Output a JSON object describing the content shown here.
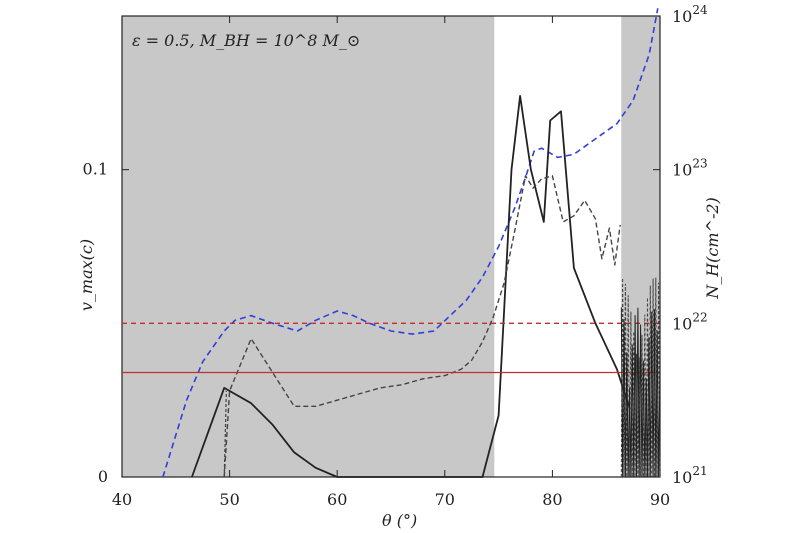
{
  "chart_data": {
    "type": "line",
    "annotation": "ε = 0.5, M_BH = 10^8 M_⊙",
    "xlabel": "θ (°)",
    "ylabel_left": "v_max(c)",
    "ylabel_right": "N_H(cm^-2)",
    "xlim": [
      40,
      90
    ],
    "ylim_left": [
      0,
      0.15
    ],
    "ylim_right_log10": [
      21,
      24
    ],
    "x_ticks": [
      "40",
      "50",
      "60",
      "70",
      "80",
      "90"
    ],
    "y_ticks_left": [
      {
        "value": 0,
        "label": "0"
      },
      {
        "value": 0.1,
        "label": "0.1"
      }
    ],
    "y_ticks_right": [
      {
        "exp": 21,
        "label": "10",
        "sup": "21"
      },
      {
        "exp": 22,
        "label": "10",
        "sup": "22"
      },
      {
        "exp": 23,
        "label": "10",
        "sup": "23"
      },
      {
        "exp": 24,
        "label": "10",
        "sup": "24"
      }
    ],
    "shaded_regions": [
      {
        "x0": 40,
        "x1": 74.6
      },
      {
        "x0": 86.4,
        "x1": 90
      }
    ],
    "colors": {
      "shade": "#c8c8c8",
      "blue": "#2f3fd8",
      "red": "#c03030",
      "black": "#222222",
      "grey": "#444444"
    },
    "series": [
      {
        "style": "blue-dashed",
        "axis": "right",
        "x": [
          43.8,
          46,
          47.5,
          49.5,
          50.5,
          52,
          54,
          56.3,
          58,
          60,
          61.5,
          63,
          65,
          67,
          69,
          70.5,
          72,
          73.5,
          75,
          76.5,
          77.5,
          78.3,
          79,
          80.5,
          82,
          84,
          86,
          87.5,
          89,
          89.8
        ],
        "y": [
          21,
          21.5,
          21.75,
          21.95,
          22.02,
          22.05,
          22.0,
          21.95,
          22.02,
          22.08,
          22.05,
          22.0,
          21.95,
          21.93,
          21.95,
          22.05,
          22.15,
          22.3,
          22.5,
          22.75,
          22.95,
          23.12,
          23.14,
          23.08,
          23.1,
          23.2,
          23.3,
          23.45,
          23.75,
          24.05
        ]
      },
      {
        "style": "black-solid",
        "axis": "left",
        "x": [
          46.5,
          49.5,
          52,
          54,
          56,
          58,
          60,
          61.5,
          62.5,
          73.5,
          75,
          76.2,
          77,
          78,
          79.2,
          79.8,
          80.8,
          82,
          84,
          86,
          87.2
        ],
        "y": [
          0,
          0.029,
          0.024,
          0.017,
          0.008,
          0.003,
          0.0,
          0.0,
          0.0,
          0.0,
          0.02,
          0.1,
          0.124,
          0.1,
          0.083,
          0.116,
          0.119,
          0.068,
          0.05,
          0.035,
          0.022
        ]
      },
      {
        "style": "black-dashed",
        "axis": "left",
        "x": [
          49.5,
          50,
          52,
          54,
          56,
          58,
          60,
          62,
          64,
          66,
          68,
          70,
          71.5,
          72.5,
          73.5,
          74.5,
          75.5,
          76.5,
          77.5,
          78.2,
          79,
          80,
          81,
          82,
          83,
          84,
          84.6,
          85.3,
          85.8,
          86.3
        ],
        "y": [
          0,
          0.028,
          0.045,
          0.034,
          0.023,
          0.023,
          0.025,
          0.027,
          0.029,
          0.03,
          0.032,
          0.033,
          0.035,
          0.038,
          0.044,
          0.052,
          0.063,
          0.08,
          0.098,
          0.094,
          0.097,
          0.098,
          0.083,
          0.085,
          0.09,
          0.084,
          0.071,
          0.081,
          0.069,
          0.082
        ]
      },
      {
        "style": "red-dashed",
        "axis": "left",
        "hline": 0.05
      },
      {
        "style": "red-solid",
        "axis": "left",
        "hline": 0.034
      }
    ],
    "noise_region": {
      "x0": 86.4,
      "x1": 90,
      "ymin": 0.0,
      "ymax": 0.065
    }
  }
}
